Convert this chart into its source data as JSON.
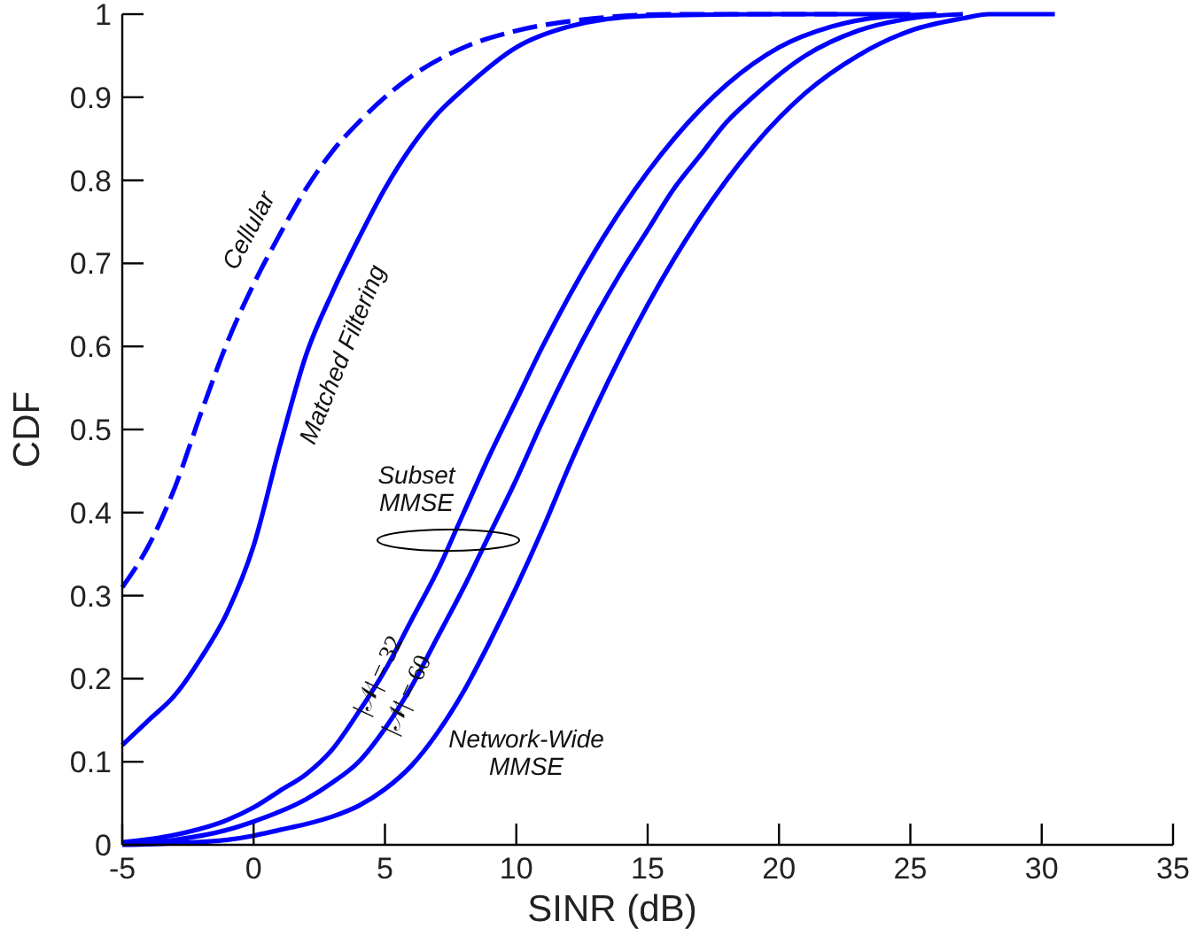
{
  "chart_data": {
    "type": "line",
    "xlabel": "SINR (dB)",
    "ylabel": "CDF",
    "xlim": [
      -5,
      35
    ],
    "xticks": [
      -5,
      0,
      5,
      10,
      15,
      20,
      25,
      30,
      35
    ],
    "ylim": [
      0,
      1
    ],
    "yticks": [
      0,
      0.1,
      0.2,
      0.3,
      0.4,
      0.5,
      0.6,
      0.7,
      0.8,
      0.9,
      1
    ],
    "grid": false,
    "marker": "none",
    "series": [
      {
        "color": "#0000ff",
        "line_style": "dashed",
        "x": [
          -5,
          -4,
          -3,
          -2,
          -1,
          0,
          1,
          2,
          3,
          4,
          5,
          6,
          8,
          10,
          13,
          16,
          22.2
        ],
        "values": [
          0.31,
          0.36,
          0.43,
          0.52,
          0.605,
          0.675,
          0.735,
          0.79,
          0.835,
          0.87,
          0.9,
          0.925,
          0.96,
          0.98,
          0.995,
          1,
          1
        ]
      },
      {
        "color": "#0000ff",
        "line_style": "solid",
        "x": [
          -5,
          -4,
          -3,
          -2,
          -1,
          0,
          1,
          2,
          3,
          4,
          5,
          6,
          7,
          8,
          10,
          12,
          15,
          20,
          25
        ],
        "values": [
          0.12,
          0.15,
          0.18,
          0.225,
          0.28,
          0.36,
          0.48,
          0.59,
          0.665,
          0.73,
          0.79,
          0.84,
          0.88,
          0.91,
          0.96,
          0.985,
          0.998,
          1,
          1
        ]
      },
      {
        "color": "#0000ff",
        "line_style": "solid",
        "x": [
          -5,
          -3,
          -1,
          0,
          1,
          2,
          3,
          4,
          5,
          6,
          7,
          8,
          9,
          10,
          11,
          12,
          13,
          14,
          15,
          16,
          17,
          18,
          20,
          22,
          24,
          26
        ],
        "values": [
          0.003,
          0.012,
          0.03,
          0.045,
          0.065,
          0.085,
          0.115,
          0.16,
          0.21,
          0.27,
          0.33,
          0.4,
          0.47,
          0.535,
          0.6,
          0.66,
          0.715,
          0.765,
          0.81,
          0.85,
          0.885,
          0.915,
          0.96,
          0.985,
          0.997,
          1
        ]
      },
      {
        "color": "#0000ff",
        "line_style": "solid",
        "x": [
          -5,
          -3,
          -1,
          0,
          1,
          2,
          3,
          4,
          5,
          6,
          7,
          8,
          9,
          10,
          11,
          12,
          13,
          14,
          15,
          16,
          17,
          18,
          19,
          21,
          23,
          25,
          27
        ],
        "values": [
          0.001,
          0.006,
          0.018,
          0.028,
          0.04,
          0.055,
          0.075,
          0.1,
          0.14,
          0.19,
          0.25,
          0.31,
          0.375,
          0.44,
          0.51,
          0.575,
          0.635,
          0.69,
          0.74,
          0.79,
          0.83,
          0.87,
          0.9,
          0.95,
          0.98,
          0.995,
          1
        ]
      },
      {
        "color": "#0000ff",
        "line_style": "solid",
        "x": [
          -5,
          -3,
          -1,
          0,
          1,
          2,
          3,
          4,
          5,
          6,
          7,
          8,
          9,
          10,
          11,
          12,
          13,
          14,
          15,
          16,
          17,
          18,
          19,
          20,
          21,
          23,
          25,
          27,
          28,
          30.5
        ],
        "values": [
          0,
          0.002,
          0.006,
          0.011,
          0.018,
          0.025,
          0.034,
          0.047,
          0.067,
          0.095,
          0.135,
          0.185,
          0.245,
          0.31,
          0.38,
          0.455,
          0.525,
          0.59,
          0.65,
          0.705,
          0.755,
          0.8,
          0.84,
          0.875,
          0.905,
          0.95,
          0.98,
          0.995,
          1,
          1
        ]
      }
    ],
    "annotations": [
      "Cellular",
      "Matched Filtering",
      "Subset\nMMSE",
      "|𝒩| = 32",
      "|𝒩| = 60",
      "Network-Wide\nMMSE"
    ]
  }
}
